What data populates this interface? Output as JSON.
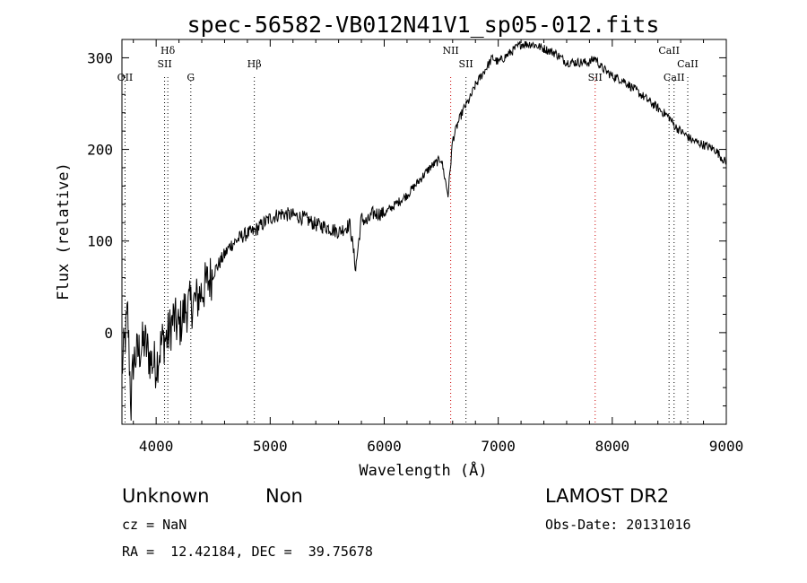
{
  "chart_data": {
    "type": "line",
    "title": "spec-56582-VB012N41V1_sp05-012.fits",
    "xlabel": "Wavelength (Å)",
    "ylabel": "Flux (relative)",
    "xlim": [
      3700,
      9000
    ],
    "ylim": [
      -100,
      320
    ],
    "x_ticks": [
      4000,
      5000,
      6000,
      7000,
      8000,
      9000
    ],
    "y_ticks": [
      0,
      100,
      200,
      300
    ],
    "grid": false,
    "series": [
      {
        "x": [
          3700,
          3750,
          3780,
          3800,
          3850,
          3900,
          3950,
          4000,
          4050,
          4100,
          4150,
          4200,
          4250,
          4300,
          4350,
          4400,
          4450,
          4500,
          4550,
          4600,
          4650,
          4700,
          4750,
          4800,
          4850,
          4900,
          4950,
          5000,
          5100,
          5200,
          5300,
          5400,
          5500,
          5600,
          5700,
          5750,
          5800,
          5850,
          5900,
          6000,
          6100,
          6200,
          6300,
          6400,
          6500,
          6560,
          6600,
          6650,
          6700,
          6750,
          6800,
          6850,
          6900,
          6950,
          7000,
          7100,
          7200,
          7300,
          7400,
          7500,
          7600,
          7700,
          7800,
          7850,
          7900,
          8000,
          8100,
          8200,
          8300,
          8400,
          8500,
          8550,
          8600,
          8700,
          8800,
          8900,
          9000
        ],
        "y": [
          -40,
          20,
          -80,
          -30,
          -20,
          -10,
          -30,
          -35,
          -10,
          -5,
          15,
          5,
          25,
          30,
          35,
          45,
          55,
          65,
          75,
          85,
          95,
          100,
          105,
          108,
          110,
          115,
          120,
          125,
          130,
          128,
          125,
          118,
          115,
          110,
          118,
          70,
          125,
          120,
          130,
          130,
          140,
          150,
          165,
          180,
          190,
          150,
          210,
          230,
          245,
          255,
          270,
          280,
          290,
          300,
          295,
          305,
          315,
          315,
          310,
          305,
          295,
          295,
          295,
          300,
          290,
          280,
          275,
          265,
          255,
          245,
          235,
          225,
          220,
          210,
          205,
          200,
          185
        ]
      }
    ],
    "annotations": [
      {
        "label": "OII",
        "x": 3727
      },
      {
        "label": "Hδ",
        "x": 4102
      },
      {
        "label": "SII",
        "x": 4074
      },
      {
        "label": "G",
        "x": 4304
      },
      {
        "label": "Hβ",
        "x": 4861
      },
      {
        "label": "NII",
        "x": 6583
      },
      {
        "label": "SII",
        "x": 6717
      },
      {
        "label": "SII",
        "x": 7850
      },
      {
        "label": "CaII",
        "x": 8498
      },
      {
        "label": "CaII",
        "x": 8542
      },
      {
        "label": "CaII",
        "x": 8662
      }
    ]
  },
  "info": {
    "class": "Unknown",
    "subclass": "Non",
    "survey": "LAMOST DR2",
    "cz": "cz = NaN",
    "obs_date": "Obs-Date: 20131016",
    "coords": "RA =  12.42184, DEC =  39.75678"
  },
  "colors": {
    "spectrum": "#000000",
    "line_markers_red": "#cc0000",
    "line_markers_black": "#000000"
  }
}
